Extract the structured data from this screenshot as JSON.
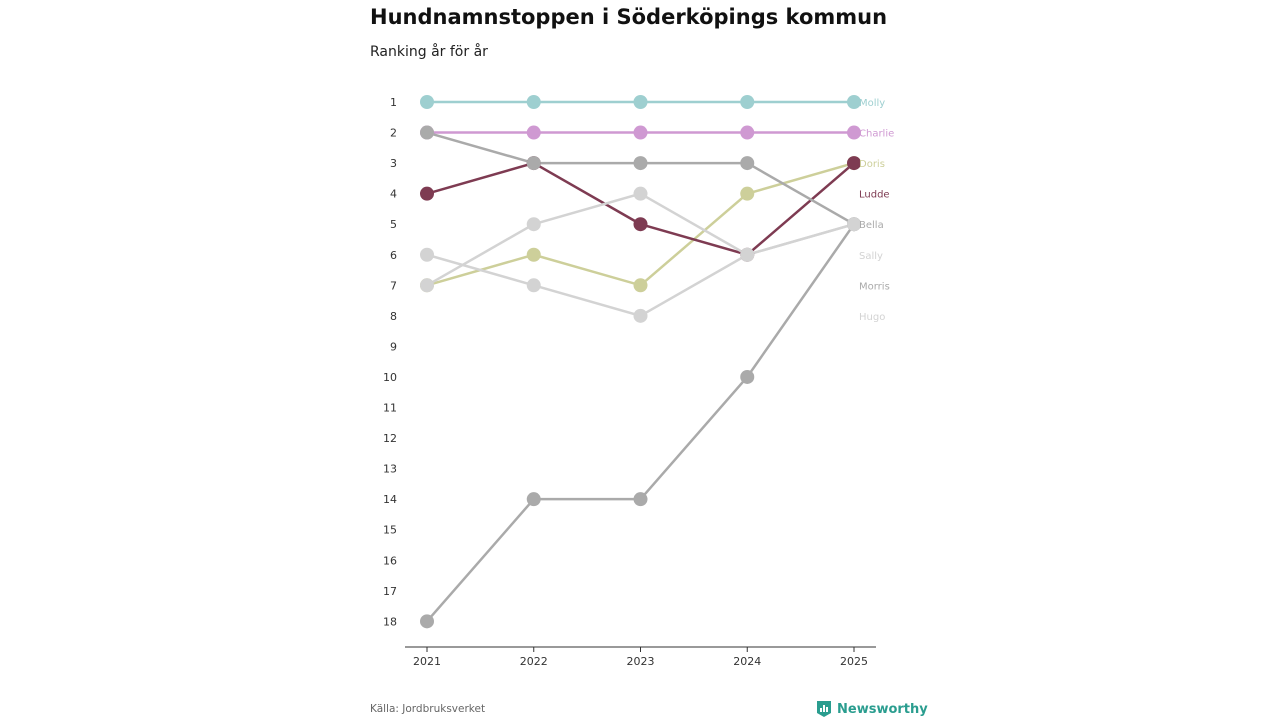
{
  "title": "Hundnamnstoppen i Söderköpings kommun",
  "subtitle": "Ranking år för år",
  "source": "Källa: Jordbruksverket",
  "brand": "Newsworthy",
  "colors": {
    "brand": "#2a9d8f",
    "axis": "#333333",
    "tick_text": "#333333"
  },
  "chart_data": {
    "type": "line",
    "x": [
      "2021",
      "2022",
      "2023",
      "2024",
      "2025"
    ],
    "ylim": [
      1,
      18
    ],
    "y_inverted": true,
    "y_ticks": [
      "1",
      "2",
      "3",
      "4",
      "5",
      "6",
      "7",
      "8",
      "9",
      "10",
      "11",
      "12",
      "13",
      "14",
      "15",
      "16",
      "17",
      "18"
    ],
    "series": [
      {
        "name": "Molly",
        "values": [
          1,
          1,
          1,
          1,
          1
        ],
        "color": "#9ecfd0"
      },
      {
        "name": "Charlie",
        "values": [
          2,
          2,
          2,
          2,
          2
        ],
        "color": "#cf99d2"
      },
      {
        "name": "Doris",
        "values": [
          7,
          6,
          7,
          4,
          3
        ],
        "color": "#cdcf9a"
      },
      {
        "name": "Ludde",
        "values": [
          4,
          3,
          5,
          6,
          3
        ],
        "color": "#7e3b52"
      },
      {
        "name": "Bella",
        "values": [
          2,
          3,
          3,
          3,
          5
        ],
        "color": "#aaaaaa"
      },
      {
        "name": "Sally",
        "values": [
          7,
          5,
          4,
          6,
          5
        ],
        "color": "#d3d3d3"
      },
      {
        "name": "Morris",
        "values": [
          18,
          14,
          14,
          10,
          5
        ],
        "color": "#aaaaaa"
      },
      {
        "name": "Hugo",
        "values": [
          6,
          7,
          8,
          6,
          5
        ],
        "color": "#d3d3d3"
      }
    ]
  }
}
